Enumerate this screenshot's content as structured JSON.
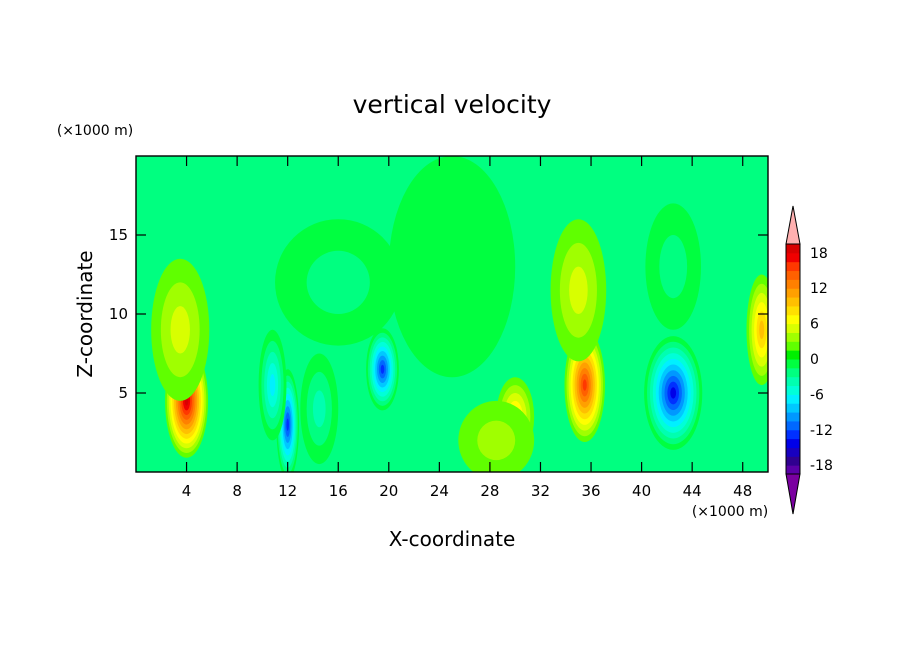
{
  "chart_data": {
    "type": "heatmap",
    "title": "vertical velocity",
    "xlabel": "X-coordinate",
    "ylabel": "Z-coordinate",
    "x_unit": "(×1000 m)",
    "y_unit": "(×1000 m)",
    "xlim": [
      0,
      50
    ],
    "ylim": [
      0,
      20
    ],
    "x_ticks": [
      4,
      8,
      12,
      16,
      20,
      24,
      28,
      32,
      36,
      40,
      44,
      48
    ],
    "y_ticks": [
      5,
      10,
      15
    ],
    "colorbar": {
      "tick_labels": [
        18,
        12,
        6,
        0,
        -6,
        -12,
        -18
      ],
      "levels": [
        -21,
        -19.5,
        -18,
        -16.5,
        -15,
        -13.5,
        -12,
        -10.5,
        -9,
        -7.5,
        -6,
        -4.5,
        -3,
        -1.5,
        0,
        1.5,
        3,
        4.5,
        6,
        7.5,
        9,
        10.5,
        12,
        13.5,
        15,
        16.5,
        18,
        19.5,
        21
      ],
      "colors": [
        "#7a00a0",
        "#5a00a8",
        "#300090",
        "#1800c0",
        "#0000e8",
        "#0030ff",
        "#0068ff",
        "#0098ff",
        "#00c8ff",
        "#00f0ff",
        "#00ffd8",
        "#00ffb0",
        "#00ff80",
        "#00ff40",
        "#00f000",
        "#60ff00",
        "#a0ff00",
        "#d8ff00",
        "#ffff00",
        "#ffe000",
        "#ffc000",
        "#ffa000",
        "#ff8000",
        "#ff6000",
        "#ff3800",
        "#f00000",
        "#d80000",
        "#ffb0b0"
      ],
      "extend": "both"
    },
    "cells": [
      {
        "x": 4,
        "z": 4.5,
        "value": 18,
        "sx": 1.7,
        "sz": 3.6
      },
      {
        "x": 3.5,
        "z": 9,
        "value": 5,
        "sx": 2.3,
        "sz": 4.5
      },
      {
        "x": 12,
        "z": 3,
        "value": -14,
        "sx": 0.9,
        "sz": 3.5
      },
      {
        "x": 10.8,
        "z": 5.5,
        "value": -8,
        "sx": 1.1,
        "sz": 3.5
      },
      {
        "x": 14.5,
        "z": 4,
        "value": -4,
        "sx": 1.5,
        "sz": 3.5
      },
      {
        "x": 19.5,
        "z": 6.5,
        "value": -13,
        "sx": 1.3,
        "sz": 2.6
      },
      {
        "x": 16,
        "z": 12,
        "value": -2.5,
        "sx": 5,
        "sz": 4
      },
      {
        "x": 30,
        "z": 3.5,
        "value": 7,
        "sx": 1.5,
        "sz": 2.5
      },
      {
        "x": 28.5,
        "z": 2,
        "value": 3,
        "sx": 3,
        "sz": 2.5
      },
      {
        "x": 35.5,
        "z": 5.5,
        "value": 15,
        "sx": 1.6,
        "sz": 3.6
      },
      {
        "x": 35,
        "z": 11.5,
        "value": 5,
        "sx": 2.2,
        "sz": 4.5
      },
      {
        "x": 42.5,
        "z": 5,
        "value": -15,
        "sx": 2.3,
        "sz": 3.6
      },
      {
        "x": 42.5,
        "z": 13,
        "value": -3,
        "sx": 2.2,
        "sz": 4
      },
      {
        "x": 49.5,
        "z": 9,
        "value": 9,
        "sx": 1.2,
        "sz": 3.5
      },
      {
        "x": 25,
        "z": 13,
        "value": -1.2,
        "sx": 5,
        "sz": 7
      }
    ]
  }
}
